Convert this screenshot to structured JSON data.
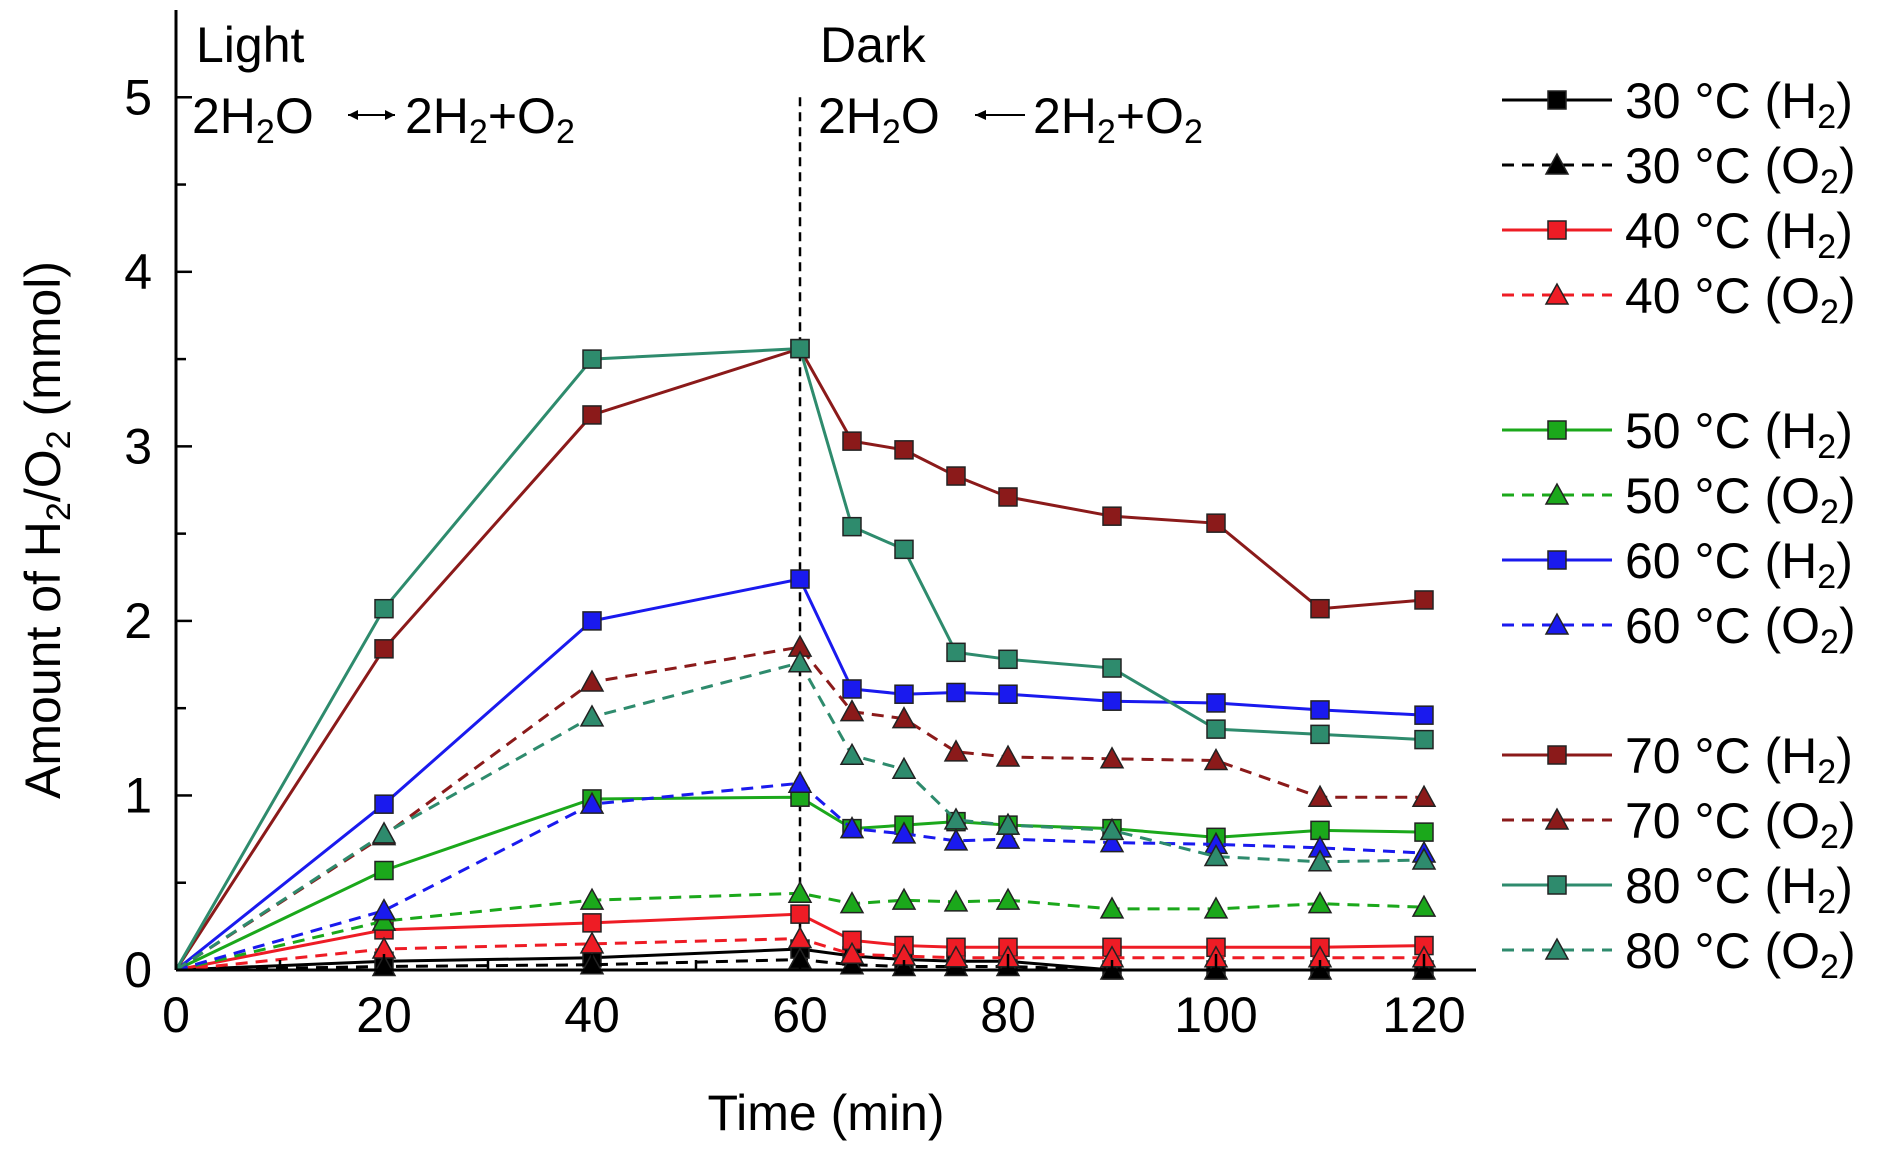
{
  "chart_data": {
    "type": "line",
    "xlabel": "Time (min)",
    "ylabel": [
      "Amount of H",
      "2",
      "/O",
      "2",
      " (mmol)"
    ],
    "xlim": [
      0,
      125
    ],
    "ylim": [
      0,
      5.5
    ],
    "xticks": [
      "0",
      "20",
      "40",
      "60",
      "80",
      "100",
      "120"
    ],
    "yticks": [
      "0",
      "1",
      "2",
      "3",
      "4",
      "5"
    ],
    "grid": false,
    "divider_x": 60,
    "annotations": {
      "light": {
        "label": "Light",
        "left": [
          "2H",
          "2",
          "O"
        ],
        "right": [
          "2H",
          "2",
          "+O",
          "2"
        ]
      },
      "dark": {
        "label": "Dark",
        "left": [
          "2H",
          "2",
          "O"
        ],
        "right": [
          "2H",
          "2",
          "+O",
          "2"
        ]
      }
    },
    "legend_position": "right",
    "series": [
      {
        "name": "30 °C (H2)",
        "temp": "30 °C",
        "gas": "H",
        "sub": "2",
        "color": "#000000",
        "marker": "square",
        "dash": false,
        "group": 0,
        "x": [
          0,
          20,
          40,
          60,
          65,
          70,
          75,
          80,
          90,
          100,
          110,
          120
        ],
        "y": [
          0,
          0.05,
          0.07,
          0.12,
          0.08,
          0.06,
          0.05,
          0.05,
          0,
          0,
          0,
          0
        ]
      },
      {
        "name": "30 °C (O2)",
        "temp": "30 °C",
        "gas": "O",
        "sub": "2",
        "color": "#000000",
        "marker": "triangle",
        "dash": true,
        "group": 0,
        "x": [
          0,
          20,
          40,
          60,
          65,
          70,
          75,
          80,
          90,
          100,
          110,
          120
        ],
        "y": [
          0,
          0.02,
          0.03,
          0.06,
          0.03,
          0.02,
          0.02,
          0.02,
          0,
          0,
          0,
          0
        ]
      },
      {
        "name": "40 °C (H2)",
        "temp": "40 °C",
        "gas": "H",
        "sub": "2",
        "color": "#ee1c25",
        "marker": "square",
        "dash": false,
        "group": 0,
        "x": [
          0,
          20,
          40,
          60,
          65,
          70,
          75,
          80,
          90,
          100,
          110,
          120
        ],
        "y": [
          0,
          0.23,
          0.27,
          0.32,
          0.17,
          0.14,
          0.13,
          0.13,
          0.13,
          0.13,
          0.13,
          0.14
        ]
      },
      {
        "name": "40 °C (O2)",
        "temp": "40 °C",
        "gas": "O",
        "sub": "2",
        "color": "#ee1c25",
        "marker": "triangle",
        "dash": true,
        "group": 0,
        "x": [
          0,
          20,
          40,
          60,
          65,
          70,
          75,
          80,
          90,
          100,
          110,
          120
        ],
        "y": [
          0,
          0.12,
          0.15,
          0.18,
          0.09,
          0.08,
          0.07,
          0.07,
          0.07,
          0.07,
          0.07,
          0.07
        ]
      },
      {
        "name": "50 °C (H2)",
        "temp": "50 °C",
        "gas": "H",
        "sub": "2",
        "color": "#1ba81b",
        "marker": "square",
        "dash": false,
        "group": 1,
        "x": [
          0,
          20,
          40,
          60,
          65,
          70,
          75,
          80,
          90,
          100,
          110,
          120
        ],
        "y": [
          0,
          0.57,
          0.98,
          0.99,
          0.81,
          0.83,
          0.85,
          0.83,
          0.81,
          0.76,
          0.8,
          0.79
        ]
      },
      {
        "name": "50 °C (O2)",
        "temp": "50 °C",
        "gas": "O",
        "sub": "2",
        "color": "#1ba81b",
        "marker": "triangle",
        "dash": true,
        "group": 1,
        "x": [
          0,
          20,
          40,
          60,
          65,
          70,
          75,
          80,
          90,
          100,
          110,
          120
        ],
        "y": [
          0,
          0.28,
          0.4,
          0.44,
          0.38,
          0.4,
          0.39,
          0.4,
          0.35,
          0.35,
          0.38,
          0.36
        ]
      },
      {
        "name": "60 °C (H2)",
        "temp": "60 °C",
        "gas": "H",
        "sub": "2",
        "color": "#1a1aee",
        "marker": "square",
        "dash": false,
        "group": 1,
        "x": [
          0,
          20,
          40,
          60,
          65,
          70,
          75,
          80,
          90,
          100,
          110,
          120
        ],
        "y": [
          0,
          0.95,
          2.0,
          2.24,
          1.61,
          1.58,
          1.59,
          1.58,
          1.54,
          1.53,
          1.49,
          1.46
        ]
      },
      {
        "name": "60 °C (O2)",
        "temp": "60 °C",
        "gas": "O",
        "sub": "2",
        "color": "#1a1aee",
        "marker": "triangle",
        "dash": true,
        "group": 1,
        "x": [
          0,
          20,
          40,
          60,
          65,
          70,
          75,
          80,
          90,
          100,
          110,
          120
        ],
        "y": [
          0,
          0.34,
          0.95,
          1.07,
          0.81,
          0.78,
          0.74,
          0.75,
          0.73,
          0.72,
          0.7,
          0.67
        ]
      },
      {
        "name": "70 °C (H2)",
        "temp": "70 °C",
        "gas": "H",
        "sub": "2",
        "color": "#8b1a1a",
        "marker": "square",
        "dash": false,
        "group": 2,
        "x": [
          0,
          20,
          40,
          60,
          65,
          70,
          75,
          80,
          90,
          100,
          110,
          120
        ],
        "y": [
          0,
          1.84,
          3.18,
          3.56,
          3.03,
          2.98,
          2.83,
          2.71,
          2.6,
          2.56,
          2.07,
          2.12
        ]
      },
      {
        "name": "70 °C (O2)",
        "temp": "70 °C",
        "gas": "O",
        "sub": "2",
        "color": "#8b1a1a",
        "marker": "triangle",
        "dash": true,
        "group": 2,
        "x": [
          0,
          20,
          40,
          60,
          65,
          70,
          75,
          80,
          90,
          100,
          110,
          120
        ],
        "y": [
          0,
          0.77,
          1.65,
          1.85,
          1.48,
          1.44,
          1.25,
          1.22,
          1.21,
          1.2,
          0.99,
          0.99
        ]
      },
      {
        "name": "80 °C (H2)",
        "temp": "80 °C",
        "gas": "H",
        "sub": "2",
        "color": "#2e8b6d",
        "marker": "square",
        "dash": false,
        "group": 2,
        "x": [
          0,
          20,
          40,
          60,
          65,
          70,
          75,
          80,
          90,
          100,
          110,
          120
        ],
        "y": [
          0,
          2.07,
          3.5,
          3.56,
          2.54,
          2.41,
          1.82,
          1.78,
          1.73,
          1.38,
          1.35,
          1.32
        ]
      },
      {
        "name": "80 °C (O2)",
        "temp": "80 °C",
        "gas": "O",
        "sub": "2",
        "color": "#2e8b6d",
        "marker": "triangle",
        "dash": true,
        "group": 2,
        "x": [
          0,
          20,
          40,
          60,
          65,
          70,
          75,
          80,
          90,
          100,
          110,
          120
        ],
        "y": [
          0,
          0.78,
          1.45,
          1.76,
          1.23,
          1.15,
          0.86,
          0.83,
          0.8,
          0.65,
          0.62,
          0.63
        ]
      }
    ]
  }
}
